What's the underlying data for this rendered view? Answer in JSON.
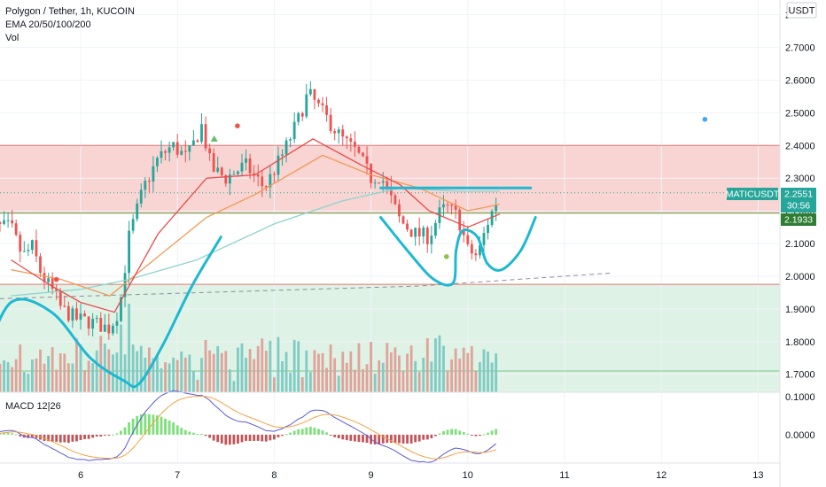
{
  "header": {
    "title": "Polygon / Tether, 1h, KUCOIN",
    "ema_label": "EMA 20/50/100/200",
    "vol_label": "Vol",
    "macd_label": "MACD 12|26",
    "currency": "USDT"
  },
  "markers": {
    "symbol": "MATICUSDT",
    "last_price": "2.2551",
    "countdown": "30:56",
    "level_price": "2.1933"
  },
  "colors": {
    "up": "#26a69a",
    "down": "#ef5350",
    "up_volume": "#80cbc4",
    "down_volume": "#e0a39a",
    "resistance_zone": "#f8d4d2",
    "support_zone": "#dff2e6",
    "pattern": "#1fb8d3",
    "ema20": "#e84b4b",
    "ema50": "#f09a55",
    "ema100": "#8dd3d0",
    "macd_line": "#5a5ad8",
    "signal_line": "#f5a142",
    "hist_up": "#7ee07a",
    "hist_down": "#c2555a"
  },
  "chart_data": {
    "type": "candlestick",
    "title": "Polygon / Tether, 1h, KUCOIN",
    "indicators": [
      "EMA 20/50/100/200",
      "Vol",
      "MACD 12|26"
    ],
    "x_ticks": [
      "6",
      "7",
      "8",
      "9",
      "10",
      "11",
      "12",
      "13"
    ],
    "price_ticks": [
      "2.8000",
      "2.7000",
      "2.6000",
      "2.5000",
      "2.4000",
      "2.3000",
      "2.2000",
      "2.1000",
      "2.0000",
      "1.9000",
      "1.8000",
      "1.7000"
    ],
    "macd_ticks": [
      "0.1000",
      "0.0000"
    ],
    "price_range": [
      1.645,
      2.845
    ],
    "macd_range": [
      -0.075,
      0.112
    ],
    "zones": {
      "resistance": [
        2.193,
        2.4
      ],
      "support": [
        1.645,
        1.975
      ]
    },
    "horizontal_lines": [
      2.4,
      2.193,
      1.975,
      1.71
    ],
    "last_price": 2.2551,
    "breakout_level": 2.27,
    "waypoints": [
      [
        5.28,
        2.15
      ],
      [
        5.4,
        2.06
      ],
      [
        5.5,
        2.09
      ],
      [
        5.6,
        2.0
      ],
      [
        5.7,
        1.96
      ],
      [
        5.8,
        1.9
      ],
      [
        5.95,
        1.87
      ],
      [
        6.1,
        1.86
      ],
      [
        6.3,
        1.84
      ],
      [
        6.4,
        1.9
      ],
      [
        6.5,
        2.12
      ],
      [
        6.65,
        2.27
      ],
      [
        6.8,
        2.36
      ],
      [
        6.95,
        2.4
      ],
      [
        7.1,
        2.36
      ],
      [
        7.25,
        2.46
      ],
      [
        7.35,
        2.33
      ],
      [
        7.5,
        2.3
      ],
      [
        7.7,
        2.34
      ],
      [
        7.9,
        2.27
      ],
      [
        8.1,
        2.38
      ],
      [
        8.25,
        2.48
      ],
      [
        8.35,
        2.56
      ],
      [
        8.5,
        2.5
      ],
      [
        8.7,
        2.42
      ],
      [
        8.85,
        2.38
      ],
      [
        9.0,
        2.3
      ],
      [
        9.1,
        2.31
      ],
      [
        9.2,
        2.24
      ],
      [
        9.3,
        2.17
      ],
      [
        9.45,
        2.13
      ],
      [
        9.6,
        2.12
      ],
      [
        9.72,
        2.2
      ],
      [
        9.8,
        2.21
      ],
      [
        9.9,
        2.18
      ],
      [
        10.0,
        2.08
      ],
      [
        10.1,
        2.06
      ],
      [
        10.2,
        2.16
      ],
      [
        10.27,
        2.21
      ],
      [
        10.33,
        2.255
      ]
    ],
    "ema20": [
      [
        5.28,
        2.05
      ],
      [
        5.7,
        1.97
      ],
      [
        6.0,
        1.92
      ],
      [
        6.35,
        1.89
      ],
      [
        6.8,
        2.13
      ],
      [
        7.3,
        2.3
      ],
      [
        7.8,
        2.31
      ],
      [
        8.4,
        2.42
      ],
      [
        8.9,
        2.34
      ],
      [
        9.3,
        2.28
      ],
      [
        9.6,
        2.2
      ],
      [
        10.0,
        2.15
      ],
      [
        10.33,
        2.19
      ]
    ],
    "ema50": [
      [
        5.28,
        2.02
      ],
      [
        5.8,
        1.99
      ],
      [
        6.3,
        1.94
      ],
      [
        6.8,
        2.06
      ],
      [
        7.3,
        2.18
      ],
      [
        7.8,
        2.25
      ],
      [
        8.5,
        2.37
      ],
      [
        9.0,
        2.31
      ],
      [
        9.5,
        2.27
      ],
      [
        10.0,
        2.2
      ],
      [
        10.33,
        2.22
      ]
    ],
    "ema100": [
      [
        5.28,
        1.94
      ],
      [
        6.0,
        1.96
      ],
      [
        6.5,
        1.99
      ],
      [
        7.2,
        2.05
      ],
      [
        8.0,
        2.16
      ],
      [
        8.7,
        2.23
      ],
      [
        9.3,
        2.27
      ],
      [
        9.9,
        2.26
      ],
      [
        10.33,
        2.26
      ]
    ],
    "pattern_curves": [
      [
        [
          5.0,
          1.74
        ],
        [
          5.28,
          1.92
        ],
        [
          5.7,
          1.89
        ],
        [
          6.1,
          1.75
        ],
        [
          6.45,
          1.68
        ],
        [
          6.6,
          1.67
        ],
        [
          6.85,
          1.79
        ],
        [
          7.15,
          1.97
        ],
        [
          7.45,
          2.12
        ]
      ],
      [
        [
          9.1,
          2.27
        ],
        [
          10.65,
          2.27
        ]
      ],
      [
        [
          9.1,
          2.18
        ],
        [
          9.4,
          2.07
        ],
        [
          9.65,
          1.99
        ],
        [
          9.85,
          1.98
        ],
        [
          9.88,
          2.08
        ],
        [
          9.95,
          2.14
        ],
        [
          10.1,
          2.12
        ],
        [
          10.2,
          2.04
        ],
        [
          10.35,
          2.02
        ],
        [
          10.55,
          2.08
        ],
        [
          10.7,
          2.18
        ]
      ]
    ],
    "dashed_trend": [
      [
        5.0,
        1.93
      ],
      [
        9.5,
        1.97
      ],
      [
        11.5,
        2.01
      ]
    ],
    "signals": [
      {
        "type": "up-triangle",
        "x": 7.38,
        "y": 2.42,
        "color": "#66bb6a"
      },
      {
        "type": "dot",
        "x": 7.62,
        "y": 2.46,
        "color": "#ef5350"
      },
      {
        "type": "dot",
        "x": 5.75,
        "y": 1.99,
        "color": "#ef5350"
      },
      {
        "type": "dot",
        "x": 9.78,
        "y": 2.06,
        "color": "#8bc34a"
      },
      {
        "type": "dot",
        "x": 12.45,
        "y": 2.48,
        "color": "#42a5f5"
      }
    ]
  }
}
